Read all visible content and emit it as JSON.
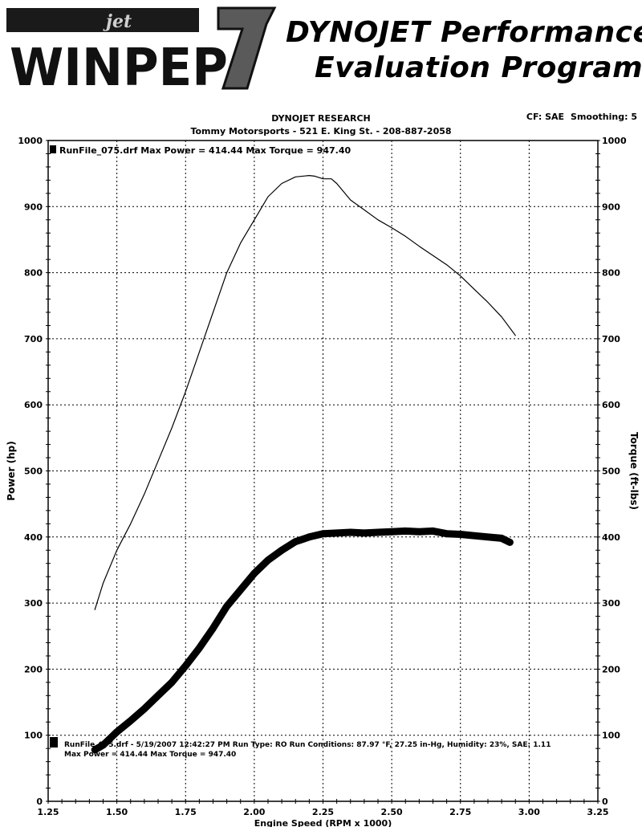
{
  "brand": {
    "logo_small": "jet",
    "logo_text": "WINPEP",
    "logo_number": "7",
    "title_line1": "DYNOJET Performance",
    "title_line2": "Evaluation Program"
  },
  "header": {
    "title": "DYNOJET RESEARCH",
    "subtitle": "Tommy Motorsports - 521 E. King St. - 208-887-2058",
    "cf": "CF: SAE",
    "smoothing": "Smoothing: 5"
  },
  "chart_data": {
    "type": "line",
    "xlabel": "Engine Speed (RPM x 1000)",
    "ylabel_left": "Power (hp)",
    "ylabel_right": "Torque (ft-lbs)",
    "xlim": [
      1.25,
      3.25
    ],
    "ylim_left": [
      0,
      1000
    ],
    "ylim_right": [
      0,
      1000
    ],
    "x_ticks": [
      "1.25",
      "1.50",
      "1.75",
      "2.00",
      "2.25",
      "2.50",
      "2.75",
      "3.00",
      "3.25"
    ],
    "y_ticks_left": [
      "0",
      "100",
      "200",
      "300",
      "400",
      "500",
      "600",
      "700",
      "800",
      "900",
      "1000"
    ],
    "y_ticks_right": [
      "0",
      "100",
      "200",
      "300",
      "400",
      "500",
      "600",
      "700",
      "800",
      "900",
      "1000"
    ],
    "grid": true,
    "legend_top": "RunFile_075.drf Max Power = 414.44    Max Torque = 947.40",
    "legend_bottom_line1": "RunFile_075.drf - 5/19/2007 12:42:27 PM  Run Type: RO  Run Conditions: 87.97 °F, 27.25 in-Hg,  Humidity:  23%, SAE: 1.11",
    "legend_bottom_line2": "Max Power = 414.44  Max Torque = 947.40",
    "series": [
      {
        "name": "Torque",
        "axis": "right",
        "x": [
          1.42,
          1.45,
          1.5,
          1.55,
          1.6,
          1.65,
          1.7,
          1.75,
          1.8,
          1.85,
          1.9,
          1.95,
          2.0,
          2.05,
          2.1,
          2.15,
          2.2,
          2.22,
          2.25,
          2.28,
          2.3,
          2.35,
          2.4,
          2.45,
          2.5,
          2.55,
          2.6,
          2.65,
          2.7,
          2.75,
          2.8,
          2.85,
          2.9,
          2.95
        ],
        "values": [
          290,
          330,
          380,
          420,
          465,
          515,
          565,
          620,
          680,
          740,
          800,
          845,
          880,
          915,
          935,
          945,
          947,
          946,
          942,
          942,
          935,
          910,
          895,
          880,
          868,
          855,
          840,
          826,
          812,
          795,
          775,
          755,
          733,
          705
        ]
      },
      {
        "name": "Power",
        "axis": "left",
        "x": [
          1.42,
          1.45,
          1.5,
          1.55,
          1.6,
          1.65,
          1.7,
          1.75,
          1.8,
          1.85,
          1.9,
          1.95,
          2.0,
          2.05,
          2.1,
          2.15,
          2.2,
          2.25,
          2.3,
          2.35,
          2.4,
          2.45,
          2.5,
          2.55,
          2.6,
          2.65,
          2.7,
          2.75,
          2.8,
          2.85,
          2.9,
          2.93
        ],
        "values": [
          78,
          85,
          105,
          122,
          140,
          160,
          180,
          205,
          232,
          262,
          295,
          320,
          345,
          365,
          380,
          393,
          400,
          405,
          406,
          407,
          406,
          407,
          408,
          409,
          408,
          409,
          405,
          404,
          402,
          400,
          398,
          392
        ]
      }
    ]
  }
}
